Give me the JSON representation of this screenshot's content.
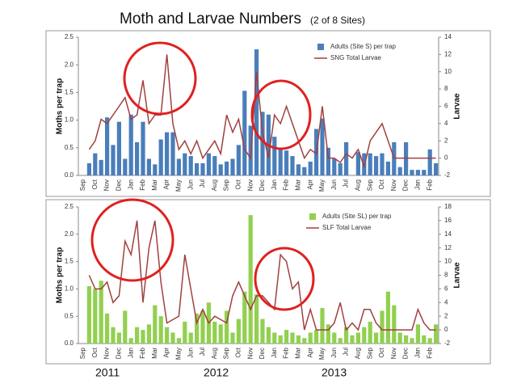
{
  "title": "Moth and Larvae Numbers",
  "subtitle": "(2 of 8 Sites)",
  "year_labels": [
    "2011",
    "2012",
    "2013"
  ],
  "chart_data": [
    {
      "type": "combo",
      "ylabel": "Moths per trap",
      "y2label": "Larvae",
      "legend": "top-right",
      "grid": false,
      "categories": [
        "Sep",
        null,
        "Oct",
        null,
        "Nov",
        null,
        "Dec",
        null,
        "Jan",
        null,
        "Feb",
        null,
        "Mar",
        null,
        "Apr",
        null,
        "May",
        null,
        "Jun",
        null,
        "Jul",
        null,
        "Aug",
        null,
        "Sep",
        null,
        "Oct",
        null,
        "Nov",
        null,
        "Dec",
        null,
        "Jan",
        null,
        "Feb",
        null,
        "Mar",
        null,
        "Apr",
        null,
        "May",
        null,
        "Jun",
        null,
        "Jul",
        null,
        "Aug",
        null,
        "Sep",
        null,
        "Oct",
        null,
        "Nov",
        null,
        "Dec",
        null,
        "Jan",
        null,
        "Feb",
        null
      ],
      "ylim": [
        0,
        2.5
      ],
      "yticks": [
        {
          "value": 0,
          "label": "0.0"
        },
        0.5,
        {
          "value": 1,
          "label": "1.0"
        },
        1.5,
        {
          "value": 2,
          "label": "2.0"
        },
        2.5
      ],
      "y2lim": [
        -2,
        14
      ],
      "y2ticks": [
        -2,
        0,
        2,
        4,
        6,
        8,
        10,
        12,
        14
      ],
      "series": [
        {
          "name": "Adults (Site S) per trap",
          "type": "bar",
          "color": "#4a7ebb",
          "values": [
            null,
            0.22,
            0.4,
            0.28,
            1.05,
            0.55,
            0.97,
            0.3,
            1.1,
            0.6,
            0.97,
            0.3,
            0.2,
            0.65,
            0.78,
            0.78,
            0.3,
            0.4,
            0.35,
            0.22,
            0.22,
            0.4,
            0.35,
            0.2,
            0.25,
            0.3,
            0.55,
            1.53,
            0.9,
            2.28,
            1.15,
            1.1,
            0.7,
            0.5,
            0.45,
            0.35,
            0.2,
            0.15,
            0.25,
            0.84,
            1.03,
            0.5,
            0.3,
            0.22,
            0.6,
            null,
            0.42,
            0.4,
            0.4,
            0.35,
            0.4,
            0.25,
            0.6,
            0.15,
            0.6,
            0.1,
            0.1,
            0.1,
            0.47,
            0.22
          ]
        },
        {
          "name": "SNG Total Larvae",
          "type": "line",
          "axis": "y2",
          "color": "#a0413e",
          "values": [
            null,
            1,
            2,
            4.5,
            4,
            5,
            6,
            7,
            4.5,
            5,
            9,
            4,
            5,
            5,
            12,
            4,
            1,
            2,
            0.5,
            2,
            0,
            1,
            2,
            0.5,
            5,
            3,
            4.5,
            1,
            0,
            10,
            3,
            0,
            5,
            4,
            6,
            4,
            2,
            0,
            1,
            0.5,
            6,
            0,
            0,
            -0.5,
            0.5,
            0,
            1,
            -1,
            2,
            3,
            4,
            2,
            0,
            0,
            0,
            0,
            0,
            0,
            0,
            0
          ]
        }
      ]
    },
    {
      "type": "combo",
      "ylabel": "Moths per trap",
      "y2label": "Larvae",
      "legend": "top-right",
      "grid": false,
      "categories": [
        "Sep",
        null,
        "Oct",
        null,
        "Nov",
        null,
        "Dec",
        null,
        "Jan",
        null,
        "Feb",
        null,
        "Mar",
        null,
        "Apr",
        null,
        "May",
        null,
        "Jun",
        null,
        "Jul",
        null,
        "Aug",
        null,
        "Sep",
        null,
        "Oct",
        null,
        "Nov",
        null,
        "Dec",
        null,
        "Jan",
        null,
        "Feb",
        null,
        "Mar",
        null,
        "Apr",
        null,
        "May",
        null,
        "Jun",
        null,
        "Jul",
        null,
        "Aug",
        null,
        "Sep",
        null,
        "Oct",
        null,
        "Nov",
        null,
        "Dec",
        null,
        "Jan",
        null,
        "Feb",
        null
      ],
      "ylim": [
        0,
        2.5
      ],
      "yticks": [
        {
          "value": 0,
          "label": "0.0"
        },
        0.5,
        {
          "value": 1,
          "label": "1.0"
        },
        1.5,
        {
          "value": 2,
          "label": "2.0"
        },
        2.5
      ],
      "y2lim": [
        -2,
        18
      ],
      "y2ticks": [
        -2,
        0,
        2,
        4,
        6,
        8,
        10,
        12,
        14,
        16,
        18
      ],
      "series": [
        {
          "name": "Adults (Site SL) per trap",
          "type": "bar",
          "color": "#92d050",
          "values": [
            null,
            1.05,
            1.0,
            1.15,
            0.55,
            0.3,
            0.2,
            0.6,
            0.1,
            0.3,
            0.25,
            0.35,
            0.7,
            0.5,
            0.3,
            0.2,
            0.1,
            0.4,
            0.2,
            0.55,
            0.6,
            0.75,
            0.4,
            0.35,
            0.6,
            0.2,
            0.45,
            0.95,
            2.35,
            0.9,
            0.45,
            0.3,
            0.2,
            0.15,
            0.25,
            0.2,
            0.15,
            0.1,
            0.2,
            0.25,
            0.65,
            0.35,
            0.2,
            0.1,
            0.3,
            0.15,
            0.2,
            0.3,
            0.4,
            0.2,
            0.6,
            0.95,
            0.7,
            0.2,
            0.15,
            0.1,
            0.35,
            0.15,
            0.1,
            0.35
          ]
        },
        {
          "name": "SLF Total Larvae",
          "type": "line",
          "axis": "y2",
          "color": "#a0413e",
          "values": [
            null,
            8,
            6,
            6,
            7,
            4,
            5,
            13,
            11,
            16,
            4,
            12,
            16,
            7,
            1,
            1.5,
            2,
            11,
            6,
            1,
            3,
            1,
            2,
            1.5,
            1,
            5,
            7,
            5,
            3,
            5,
            5,
            4,
            3,
            11,
            10,
            6,
            7,
            0,
            3,
            0,
            0,
            0,
            1,
            4,
            0,
            1,
            0,
            3,
            3,
            1,
            0,
            0,
            0,
            0,
            0,
            0,
            3,
            1,
            0,
            0
          ]
        }
      ]
    }
  ]
}
